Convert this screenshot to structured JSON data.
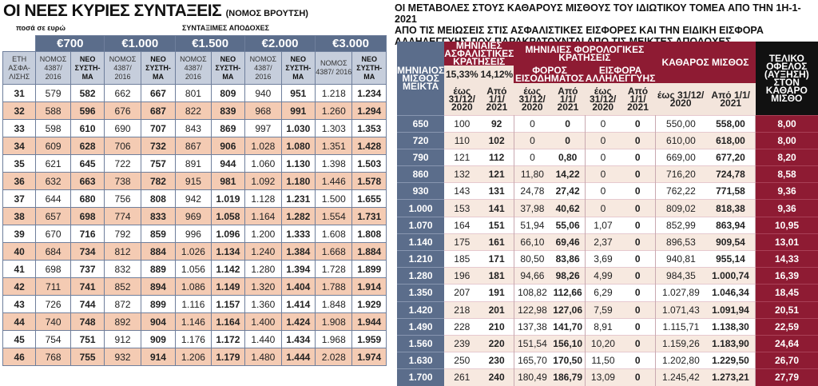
{
  "left": {
    "title": "ΟΙ ΝΕΕΣ ΚΥΡΙΕΣ ΣΥΝΤΑΞΕΙΣ",
    "title_sub": "(ΝΟΜΟΣ ΒΡΟΥΤΣΗ)",
    "note_left": "ποσά σε ευρώ",
    "note_right": "ΣΥΝΤΑΞΙΜΕΣ ΑΠΟΔΟΧΕΣ",
    "amounts": [
      "€700",
      "€1.000",
      "€1.500",
      "€2.000",
      "€3.000"
    ],
    "col_years": "ΕΤΗ ΑΣΦΑ- ΛΙΣΗΣ",
    "col_old": "ΝΟΜΟΣ 4387/ 2016",
    "col_new": "ΝΕΟ ΣΥΣΤΗ- ΜΑ",
    "rows": [
      [
        "31",
        "579",
        "582",
        "662",
        "667",
        "801",
        "809",
        "940",
        "951",
        "1.218",
        "1.234"
      ],
      [
        "32",
        "588",
        "596",
        "676",
        "687",
        "822",
        "839",
        "968",
        "991",
        "1.260",
        "1.294"
      ],
      [
        "33",
        "598",
        "610",
        "690",
        "707",
        "843",
        "869",
        "997",
        "1.030",
        "1.303",
        "1.353"
      ],
      [
        "34",
        "609",
        "628",
        "706",
        "732",
        "867",
        "906",
        "1.028",
        "1.080",
        "1.351",
        "1.428"
      ],
      [
        "35",
        "621",
        "645",
        "722",
        "757",
        "891",
        "944",
        "1.060",
        "1.130",
        "1.398",
        "1.503"
      ],
      [
        "36",
        "632",
        "663",
        "738",
        "782",
        "915",
        "981",
        "1.092",
        "1.180",
        "1.446",
        "1.578"
      ],
      [
        "37",
        "644",
        "680",
        "756",
        "808",
        "942",
        "1.019",
        "1.128",
        "1.231",
        "1.500",
        "1.655"
      ],
      [
        "38",
        "657",
        "698",
        "774",
        "833",
        "969",
        "1.058",
        "1.164",
        "1.282",
        "1.554",
        "1.731"
      ],
      [
        "39",
        "670",
        "716",
        "792",
        "859",
        "996",
        "1.096",
        "1.200",
        "1.333",
        "1.608",
        "1.808"
      ],
      [
        "40",
        "684",
        "734",
        "812",
        "884",
        "1.026",
        "1.134",
        "1.240",
        "1.384",
        "1.668",
        "1.884"
      ],
      [
        "41",
        "698",
        "737",
        "832",
        "889",
        "1.056",
        "1.142",
        "1.280",
        "1.394",
        "1.728",
        "1.899"
      ],
      [
        "42",
        "711",
        "741",
        "852",
        "894",
        "1.086",
        "1.149",
        "1.320",
        "1.404",
        "1.788",
        "1.914"
      ],
      [
        "43",
        "726",
        "744",
        "872",
        "899",
        "1.116",
        "1.157",
        "1.360",
        "1.414",
        "1.848",
        "1.929"
      ],
      [
        "44",
        "740",
        "748",
        "892",
        "904",
        "1.146",
        "1.164",
        "1.400",
        "1.424",
        "1.908",
        "1.944"
      ],
      [
        "45",
        "754",
        "751",
        "912",
        "909",
        "1.176",
        "1.172",
        "1.440",
        "1.434",
        "1.968",
        "1.959"
      ],
      [
        "46",
        "768",
        "755",
        "932",
        "914",
        "1.206",
        "1.179",
        "1.480",
        "1.444",
        "2.028",
        "1.974"
      ]
    ]
  },
  "right": {
    "title": "ΟΙ ΜΕΤΑΒΟΛΕΣ ΣΤΟΥΣ ΚΑΘΑΡΟΥΣ ΜΙΣΘΟΥΣ ΤΟΥ ΙΔΙΩΤΙΚΟΥ ΤΟΜΕΑ ΑΠΟ ΤΗΝ 1Η-1-2021\nΑΠΟ ΤΙΣ ΜΕΙΩΣΕΙΣ ΣΤΙΣ ΑΣΦΑΛΙΣΤΙΚΕΣ ΕΙΣΦΟΡΕΣ ΚΑΙ ΤΗΝ ΕΙΔΙΚΗ ΕΙΣΦΟΡΑ\nΑΛΛΗΛΕΓΓΥΗΣ ΠΟΥ ΠΑΡΑΚΡΑΤΟΥΝΤΑΙ ΑΠΟ ΤΙΣ ΜΕΙΚΤΕΣ ΑΠΟΔΟΧΕΣ",
    "h_gross": "ΜΗΝΙΑΙΟΣ ΜΙΣΘΟΣ ΜΕΙΚΤΑ",
    "h_ins": "ΜΗΝΙΑΙΕΣ ΑΣΦΑΛΙΣΤΙΚΕΣ ΚΡΑΤΗΣΕΙΣ",
    "h_ins_p1": "15,33%",
    "h_ins_p2": "14,12%",
    "h_tax_group": "ΜΗΝΙΑΙΕΣ ΦΟΡΟΛΟΓΙΚΕΣ ΚΡΑΤΗΣΕΙΣ",
    "h_tax": "ΦΟΡΟΣ ΕΙΣΟΔΗΜΑΤΟΣ",
    "h_sol": "ΕΙΣΦΟΡΑ ΑΛΛΗΛΕΓΓΥΗΣ",
    "h_net": "ΚΑΘΑΡΟΣ ΜΙΣΘΟΣ",
    "h_gain": "ΤΕΛΙΚΟ ΟΦΕΛΟΣ (ΑΥΞΗΣΗ) ΣΤΟΝ ΚΑΘΑΡΟ ΜΙΣΘΟ",
    "h_until": "έως 31/12/ 2020",
    "h_from": "Από 1/1/ 2021",
    "rows": [
      [
        "650",
        "100",
        "92",
        "0",
        "0",
        "0",
        "0",
        "550,00",
        "558,00",
        "8,00"
      ],
      [
        "720",
        "110",
        "102",
        "0",
        "0",
        "0",
        "0",
        "610,00",
        "618,00",
        "8,00"
      ],
      [
        "790",
        "121",
        "112",
        "0",
        "0,80",
        "0",
        "0",
        "669,00",
        "677,20",
        "8,20"
      ],
      [
        "860",
        "132",
        "121",
        "11,80",
        "14,22",
        "0",
        "0",
        "716,20",
        "724,78",
        "8,58"
      ],
      [
        "930",
        "143",
        "131",
        "24,78",
        "27,42",
        "0",
        "0",
        "762,22",
        "771,58",
        "9,36"
      ],
      [
        "1.000",
        "153",
        "141",
        "37,98",
        "40,62",
        "0",
        "0",
        "809,02",
        "818,38",
        "9,36"
      ],
      [
        "1.070",
        "164",
        "151",
        "51,94",
        "55,06",
        "1,07",
        "0",
        "852,99",
        "863,94",
        "10,95"
      ],
      [
        "1.140",
        "175",
        "161",
        "66,10",
        "69,46",
        "2,37",
        "0",
        "896,53",
        "909,54",
        "13,01"
      ],
      [
        "1.210",
        "185",
        "171",
        "80,50",
        "83,86",
        "3,69",
        "0",
        "940,81",
        "955,14",
        "14,33"
      ],
      [
        "1.280",
        "196",
        "181",
        "94,66",
        "98,26",
        "4,99",
        "0",
        "984,35",
        "1.000,74",
        "16,39"
      ],
      [
        "1.350",
        "207",
        "191",
        "108,82",
        "112,66",
        "6,29",
        "0",
        "1.027,89",
        "1.046,34",
        "18,45"
      ],
      [
        "1.420",
        "218",
        "201",
        "122,98",
        "127,06",
        "7,59",
        "0",
        "1.071,43",
        "1.091,94",
        "20,51"
      ],
      [
        "1.490",
        "228",
        "210",
        "137,38",
        "141,70",
        "8,91",
        "0",
        "1.115,71",
        "1.138,30",
        "22,59"
      ],
      [
        "1.560",
        "239",
        "220",
        "151,54",
        "156,10",
        "10,20",
        "0",
        "1.159,26",
        "1.183,90",
        "24,64"
      ],
      [
        "1.630",
        "250",
        "230",
        "165,70",
        "170,50",
        "11,50",
        "0",
        "1.202,80",
        "1.229,50",
        "26,70"
      ],
      [
        "1.700",
        "261",
        "240",
        "180,49",
        "186,79",
        "13,09",
        "0",
        "1.245,42",
        "1.273,21",
        "27,79"
      ]
    ]
  }
}
